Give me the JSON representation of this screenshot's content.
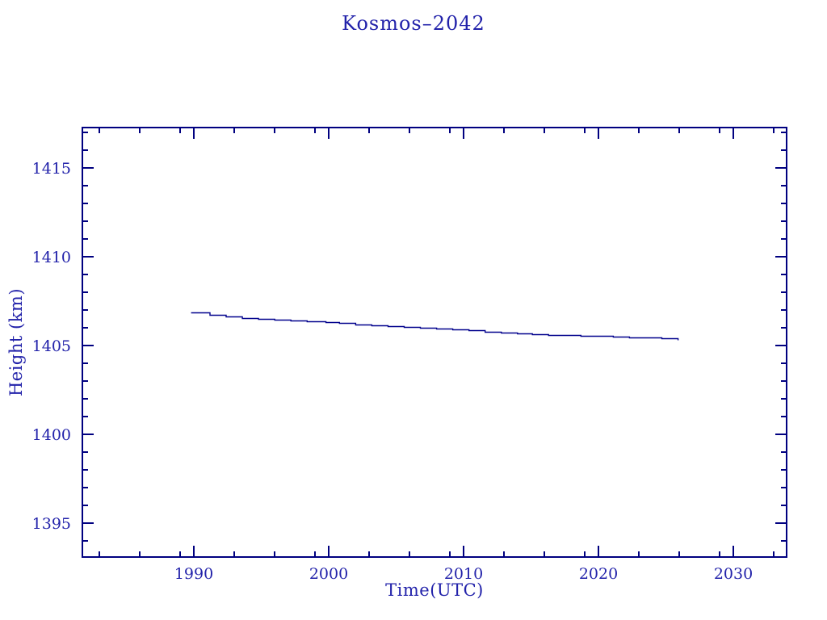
{
  "page": {
    "background": "#ffffff"
  },
  "chart_data": {
    "type": "line",
    "title": "Kosmos–2042",
    "xlabel": "Time(UTC)",
    "ylabel": "Height (km)",
    "xlim": [
      1981.74,
      2033.95
    ],
    "ylim": [
      1393.1,
      1417.28
    ],
    "grid": "off",
    "legend": "none",
    "x_major_ticks": [
      1990,
      2000,
      2010,
      2020,
      2030
    ],
    "x_minor_ticks": [
      1983,
      1986,
      1989,
      1993,
      1996,
      1999,
      2003,
      2006,
      2009,
      2013,
      2016,
      2019,
      2023,
      2026,
      2029,
      2033
    ],
    "y_major_ticks": [
      1395,
      1400,
      1405,
      1410,
      1415
    ],
    "y_minor_ticks": [
      1394,
      1396,
      1397,
      1398,
      1399,
      1401,
      1402,
      1403,
      1404,
      1406,
      1407,
      1408,
      1409,
      1411,
      1412,
      1413,
      1414,
      1416,
      1417
    ],
    "colors": {
      "axis": "#000080",
      "text": "#2222aa",
      "line": "#00008c",
      "background": "#ffffff"
    },
    "series": [
      {
        "name": "Kosmos-2042 orbital height",
        "points": [
          [
            1989.8,
            1406.86
          ],
          [
            1991.2,
            1406.73
          ],
          [
            1992.4,
            1406.64
          ],
          [
            1993.6,
            1406.57
          ],
          [
            1994.8,
            1406.52
          ],
          [
            1996.0,
            1406.47
          ],
          [
            1997.2,
            1406.43
          ],
          [
            1998.4,
            1406.39
          ],
          [
            1999.8,
            1406.34
          ],
          [
            2000.8,
            1406.27
          ],
          [
            2002.0,
            1406.18
          ],
          [
            2003.2,
            1406.14
          ],
          [
            2004.4,
            1406.09
          ],
          [
            2005.6,
            1406.07
          ],
          [
            2006.8,
            1406.02
          ],
          [
            2008.0,
            1405.98
          ],
          [
            2009.2,
            1405.93
          ],
          [
            2010.4,
            1405.86
          ],
          [
            2011.6,
            1405.8
          ],
          [
            2012.8,
            1405.75
          ],
          [
            2014.0,
            1405.7
          ],
          [
            2015.1,
            1405.66
          ],
          [
            2016.3,
            1405.62
          ],
          [
            2017.5,
            1405.59
          ],
          [
            2018.7,
            1405.57
          ],
          [
            2019.9,
            1405.55
          ],
          [
            2021.1,
            1405.5
          ],
          [
            2022.3,
            1405.48
          ],
          [
            2023.5,
            1405.44
          ],
          [
            2024.7,
            1405.4
          ],
          [
            2025.9,
            1405.34
          ]
        ]
      }
    ]
  }
}
